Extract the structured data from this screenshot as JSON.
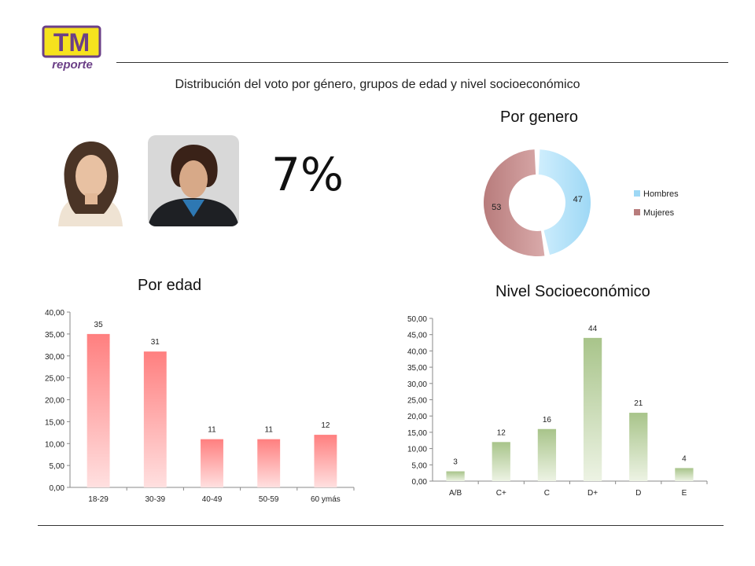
{
  "logo": {
    "text_top": "TM",
    "text_bottom": "reporte"
  },
  "header": {
    "subtitle": "Distribución del voto por género, grupos de edad y nivel socioeconómico"
  },
  "main": {
    "percent": "7%"
  },
  "headings": {
    "genero": "Por genero",
    "edad": "Por edad",
    "nivel": "Nivel Socioeconómico"
  },
  "colors": {
    "hombres": "#9ed8f5",
    "mujeres": "#b87c7c",
    "edad_bar_top": "#ff7f7f",
    "edad_bar_bottom": "#ffe0e0",
    "nivel_bar_top": "#a8c48a",
    "nivel_bar_bottom": "#edf3e4"
  },
  "chart_data": [
    {
      "type": "pie",
      "title": "Por genero",
      "categories": [
        "Hombres",
        "Mujeres"
      ],
      "values": [
        47,
        53
      ],
      "legend": "right"
    },
    {
      "type": "bar",
      "title": "Por edad",
      "categories": [
        "18-29",
        "30-39",
        "40-49",
        "50-59",
        "60 ymás"
      ],
      "values": [
        35,
        31,
        11,
        11,
        12
      ],
      "value_labels": [
        "35",
        "31",
        "11",
        "11",
        "12"
      ],
      "ylim": [
        0,
        40
      ],
      "ytick_step": 5,
      "ytick_labels": [
        "0,00",
        "5,00",
        "10,00",
        "15,00",
        "20,00",
        "25,00",
        "30,00",
        "35,00",
        "40,00"
      ],
      "grid": false
    },
    {
      "type": "bar",
      "title": "Nivel Socioeconómico",
      "categories": [
        "A/B",
        "C+",
        "C",
        "D+",
        "D",
        "E"
      ],
      "values": [
        3,
        12,
        16,
        44,
        21,
        4
      ],
      "value_labels": [
        "3",
        "12",
        "16",
        "44",
        "21",
        "4"
      ],
      "ylim": [
        0,
        50
      ],
      "ytick_step": 5,
      "ytick_labels": [
        "0,00",
        "5,00",
        "10,00",
        "15,00",
        "20,00",
        "25,00",
        "30,00",
        "35,00",
        "40,00",
        "45,00",
        "50,00"
      ],
      "grid": false
    }
  ]
}
